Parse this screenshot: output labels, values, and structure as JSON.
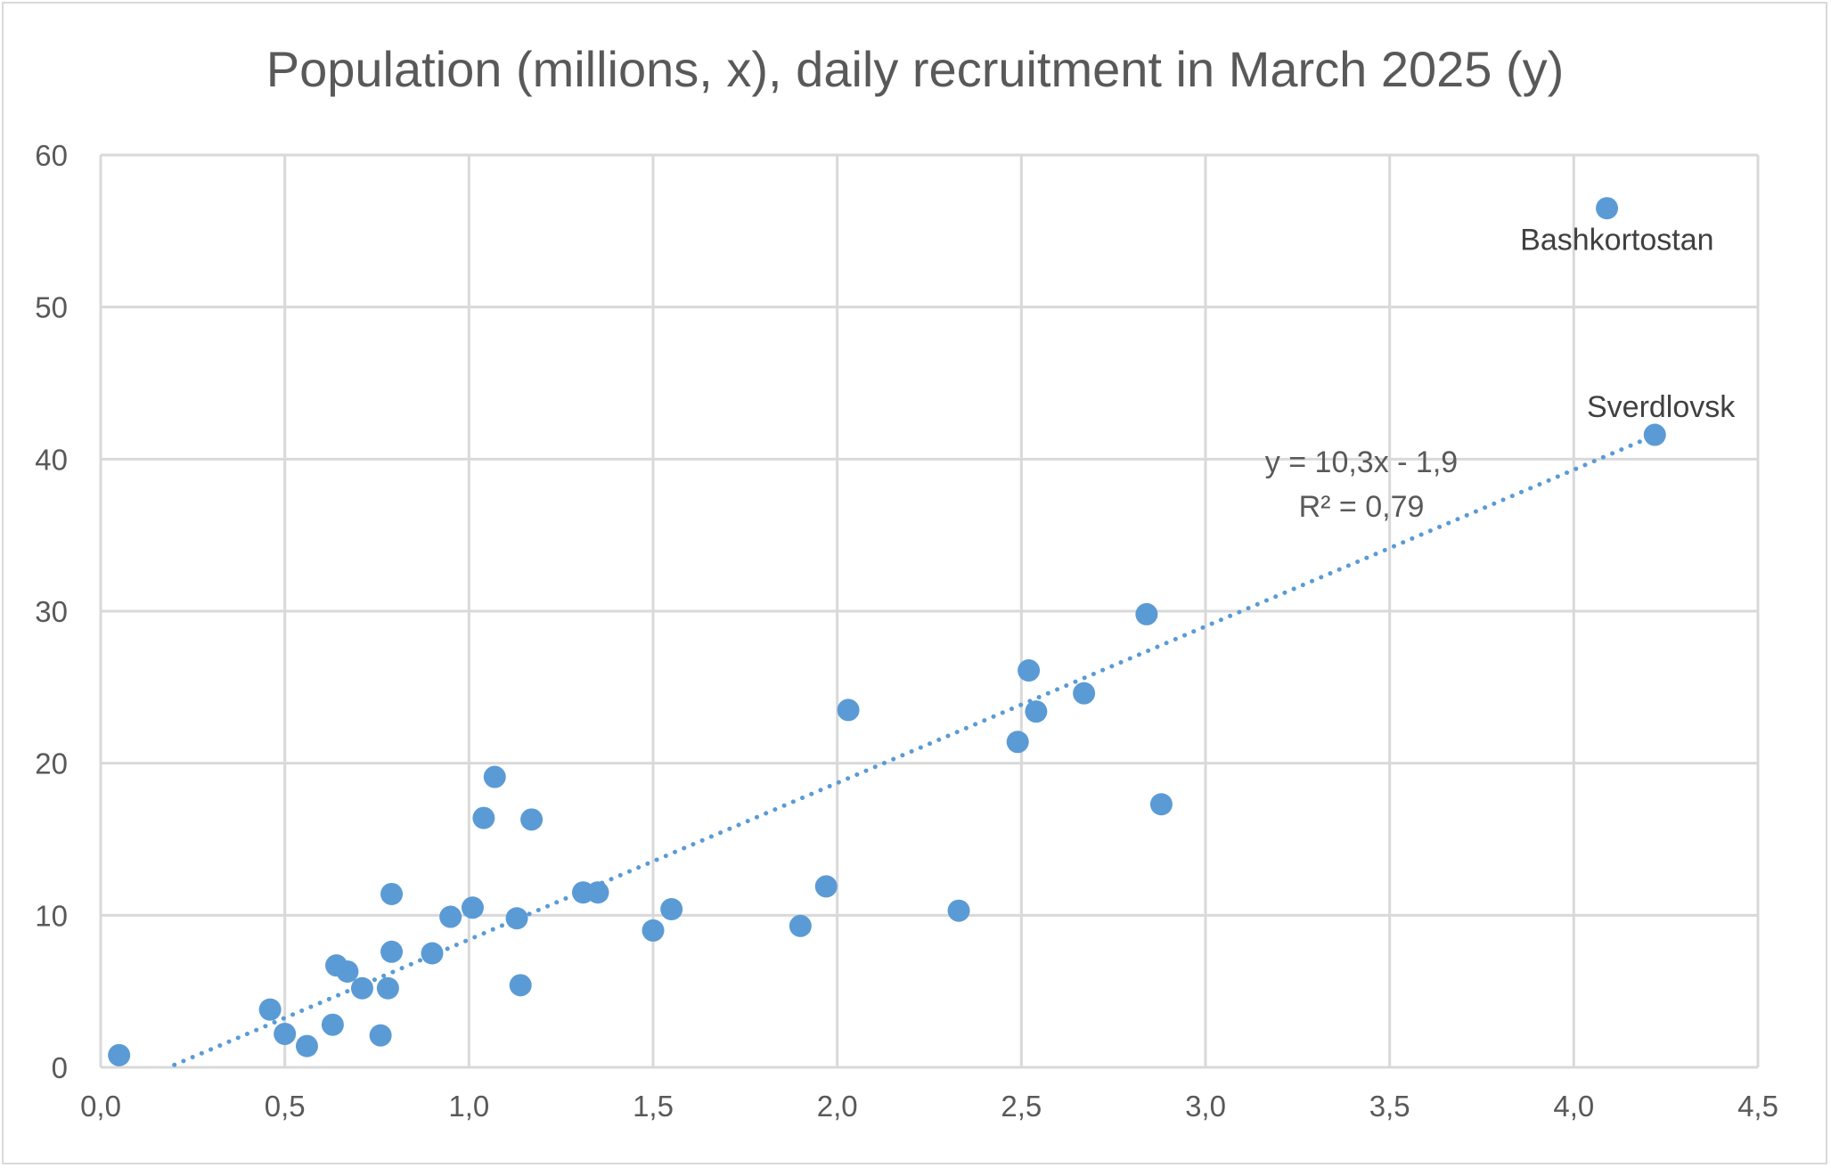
{
  "chart_data": {
    "type": "scatter",
    "title": "Population (millions, x), daily recruitment in March 2025 (y)",
    "xlabel": "",
    "ylabel": "",
    "xlim": [
      0,
      4.5
    ],
    "ylim": [
      0,
      60
    ],
    "x_ticks": [
      "0,0",
      "0,5",
      "1,0",
      "1,5",
      "2,0",
      "2,5",
      "3,0",
      "3,5",
      "4,0",
      "4,5"
    ],
    "y_ticks": [
      "0",
      "10",
      "20",
      "30",
      "40",
      "50",
      "60"
    ],
    "grid": true,
    "legend": "none",
    "marker_color": "#5b9bd5",
    "points": [
      {
        "x": 0.05,
        "y": 0.8
      },
      {
        "x": 0.46,
        "y": 3.8
      },
      {
        "x": 0.5,
        "y": 2.2
      },
      {
        "x": 0.56,
        "y": 1.4
      },
      {
        "x": 0.63,
        "y": 2.8
      },
      {
        "x": 0.64,
        "y": 6.7
      },
      {
        "x": 0.67,
        "y": 6.3
      },
      {
        "x": 0.71,
        "y": 5.2
      },
      {
        "x": 0.76,
        "y": 2.1
      },
      {
        "x": 0.78,
        "y": 5.2
      },
      {
        "x": 0.79,
        "y": 11.4
      },
      {
        "x": 0.79,
        "y": 7.6
      },
      {
        "x": 0.9,
        "y": 7.5
      },
      {
        "x": 0.95,
        "y": 9.9
      },
      {
        "x": 1.01,
        "y": 10.5
      },
      {
        "x": 1.04,
        "y": 16.4
      },
      {
        "x": 1.07,
        "y": 19.1
      },
      {
        "x": 1.13,
        "y": 9.8
      },
      {
        "x": 1.14,
        "y": 5.4
      },
      {
        "x": 1.17,
        "y": 16.3
      },
      {
        "x": 1.31,
        "y": 11.5
      },
      {
        "x": 1.35,
        "y": 11.5
      },
      {
        "x": 1.5,
        "y": 9.0
      },
      {
        "x": 1.55,
        "y": 10.4
      },
      {
        "x": 1.9,
        "y": 9.3
      },
      {
        "x": 1.97,
        "y": 11.9
      },
      {
        "x": 2.03,
        "y": 23.5
      },
      {
        "x": 2.33,
        "y": 10.3
      },
      {
        "x": 2.49,
        "y": 21.4
      },
      {
        "x": 2.52,
        "y": 26.1
      },
      {
        "x": 2.54,
        "y": 23.4
      },
      {
        "x": 2.67,
        "y": 24.6
      },
      {
        "x": 2.84,
        "y": 29.8
      },
      {
        "x": 2.88,
        "y": 17.3
      },
      {
        "x": 4.09,
        "y": 56.5,
        "label": "Bashkortostan"
      },
      {
        "x": 4.22,
        "y": 41.6,
        "label": "Sverdlovsk"
      }
    ],
    "trendline": {
      "type": "linear",
      "slope": 10.3,
      "intercept": -1.9,
      "x_range": [
        0.2,
        4.22
      ],
      "equation": "y = 10,3x - 1,9",
      "r_squared": "R² = 0,79"
    }
  }
}
